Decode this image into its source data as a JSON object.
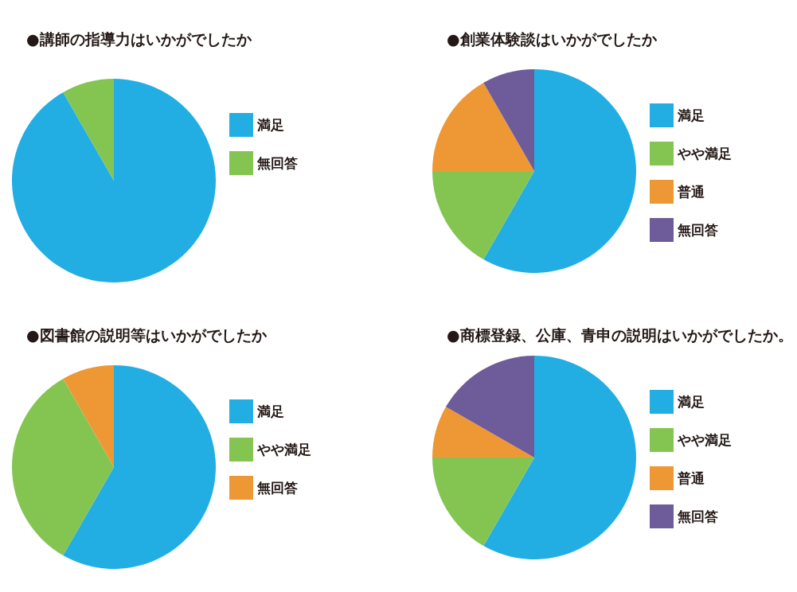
{
  "chart_data": [
    {
      "type": "pie",
      "title": "●講師の指導力はいかがでしたか",
      "categories": [
        "満足",
        "無回答"
      ],
      "values": [
        91.7,
        8.3
      ],
      "colors": [
        "#23aee3",
        "#84c552"
      ],
      "legend": "right"
    },
    {
      "type": "pie",
      "title": "●創業体験談はいかがでしたか",
      "categories": [
        "満足",
        "やや満足",
        "普通",
        "無回答"
      ],
      "values": [
        58.3,
        16.7,
        16.7,
        8.3
      ],
      "colors": [
        "#23aee3",
        "#84c552",
        "#ee9835",
        "#6e5b99"
      ],
      "legend": "right"
    },
    {
      "type": "pie",
      "title": "●図書館の説明等はいかがでしたか",
      "categories": [
        "満足",
        "やや満足",
        "無回答"
      ],
      "values": [
        58.3,
        33.4,
        8.3
      ],
      "colors": [
        "#23aee3",
        "#84c552",
        "#ee9835"
      ],
      "legend": "right"
    },
    {
      "type": "pie",
      "title": "●商標登録、公庫、青申の説明はいかがでしたか。",
      "categories": [
        "満足",
        "やや満足",
        "普通",
        "無回答"
      ],
      "values": [
        58.3,
        16.7,
        8.3,
        16.7
      ],
      "colors": [
        "#23aee3",
        "#84c552",
        "#ee9835",
        "#6e5b99"
      ],
      "legend": "right"
    }
  ]
}
